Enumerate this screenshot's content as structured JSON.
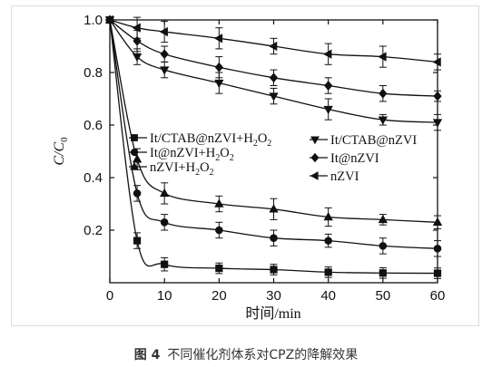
{
  "chart_data": {
    "type": "line",
    "xlabel": "时间/min",
    "ylabel": "C/C",
    "ylabel_sub": "0",
    "xlim": [
      0,
      60
    ],
    "ylim": [
      0,
      1.0
    ],
    "x_ticks": [
      0,
      10,
      20,
      30,
      40,
      50,
      60
    ],
    "x_tick_labels": [
      "0",
      "10",
      "20",
      "30",
      "40",
      "50",
      "60"
    ],
    "y_ticks": [
      0.2,
      0.4,
      0.6,
      0.8,
      1.0
    ],
    "y_tick_labels": [
      "0.2",
      "0.4",
      "0.6",
      "0.8",
      "1.0"
    ],
    "x": [
      0,
      5,
      10,
      20,
      30,
      40,
      50,
      60
    ],
    "series": [
      {
        "name": "It/CTAB@nZVI+H",
        "name_sub": "2",
        "name_mid": "O",
        "name_sub2": "2",
        "marker": "square",
        "values": [
          1.0,
          0.16,
          0.07,
          0.055,
          0.05,
          0.04,
          0.037,
          0.036
        ],
        "errors": [
          0,
          0.03,
          0.025,
          0.02,
          0.02,
          0.02,
          0.02,
          0.02
        ]
      },
      {
        "name": "It@nZVI+H",
        "name_sub": "2",
        "name_mid": "O",
        "name_sub2": "2",
        "marker": "circle",
        "values": [
          1.0,
          0.34,
          0.23,
          0.2,
          0.17,
          0.16,
          0.14,
          0.13
        ],
        "errors": [
          0,
          0.03,
          0.03,
          0.03,
          0.03,
          0.025,
          0.03,
          0.03
        ]
      },
      {
        "name": "nZVI+H",
        "name_sub": "2",
        "name_mid": "O",
        "name_sub2": "2",
        "marker": "triangle-up",
        "values": [
          1.0,
          0.47,
          0.34,
          0.3,
          0.28,
          0.25,
          0.24,
          0.23
        ],
        "errors": [
          0,
          0.04,
          0.04,
          0.03,
          0.04,
          0.035,
          0.02,
          0.025
        ]
      },
      {
        "name": "It/CTAB@nZVI",
        "marker": "triangle-down",
        "values": [
          1.0,
          0.86,
          0.81,
          0.76,
          0.71,
          0.66,
          0.62,
          0.61
        ],
        "errors": [
          0,
          0.03,
          0.03,
          0.04,
          0.03,
          0.04,
          0.02,
          0.03
        ]
      },
      {
        "name": "It@nZVI",
        "marker": "diamond",
        "values": [
          1.0,
          0.92,
          0.87,
          0.82,
          0.78,
          0.75,
          0.72,
          0.71
        ],
        "errors": [
          0,
          0.04,
          0.03,
          0.04,
          0.03,
          0.03,
          0.03,
          0.02
        ]
      },
      {
        "name": "nZVI",
        "marker": "triangle-left",
        "values": [
          1.0,
          0.97,
          0.955,
          0.93,
          0.9,
          0.87,
          0.86,
          0.84
        ],
        "errors": [
          0,
          0.04,
          0.04,
          0.04,
          0.03,
          0.04,
          0.04,
          0.03
        ]
      }
    ]
  },
  "caption": {
    "figure_no": "图 4",
    "text": "不同催化剂体系对CPZ的降解效果"
  }
}
